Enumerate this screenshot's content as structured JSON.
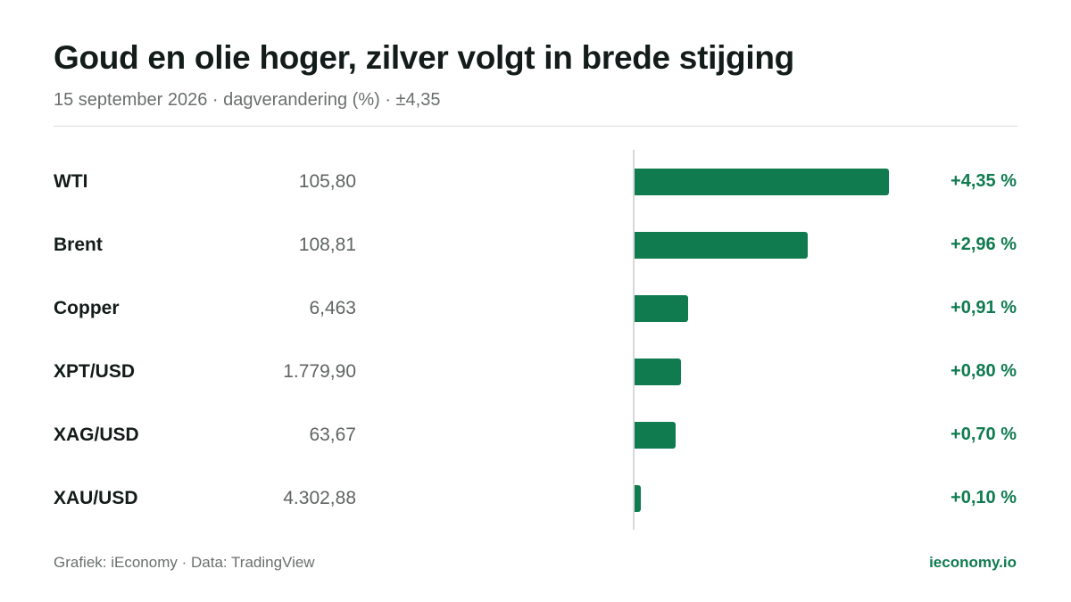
{
  "header": {
    "title": "Goud en olie hoger, zilver volgt in brede stijging",
    "subtitle": "15 september 2026 · dagverandering (%) · ±4,35"
  },
  "chart_data": {
    "type": "bar",
    "orientation": "horizontal",
    "xlim": [
      0,
      4.35
    ],
    "categories": [
      "WTI",
      "Brent",
      "Copper",
      "XPT/USD",
      "XAG/USD",
      "XAU/USD"
    ],
    "prices": [
      "105,80",
      "108,81",
      "6,463",
      "1.779,90",
      "63,67",
      "4.302,88"
    ],
    "values": [
      4.35,
      2.96,
      0.91,
      0.8,
      0.7,
      0.1
    ],
    "value_labels": [
      "+4,35 %",
      "+2,96 %",
      "+0,91 %",
      "+0,80 %",
      "+0,70 %",
      "+0,10 %"
    ],
    "bar_color": "#0f7b4f"
  },
  "footer": {
    "source": "Grafiek: iEconomy · Data: TradingView",
    "brand": "ieconomy.io"
  }
}
